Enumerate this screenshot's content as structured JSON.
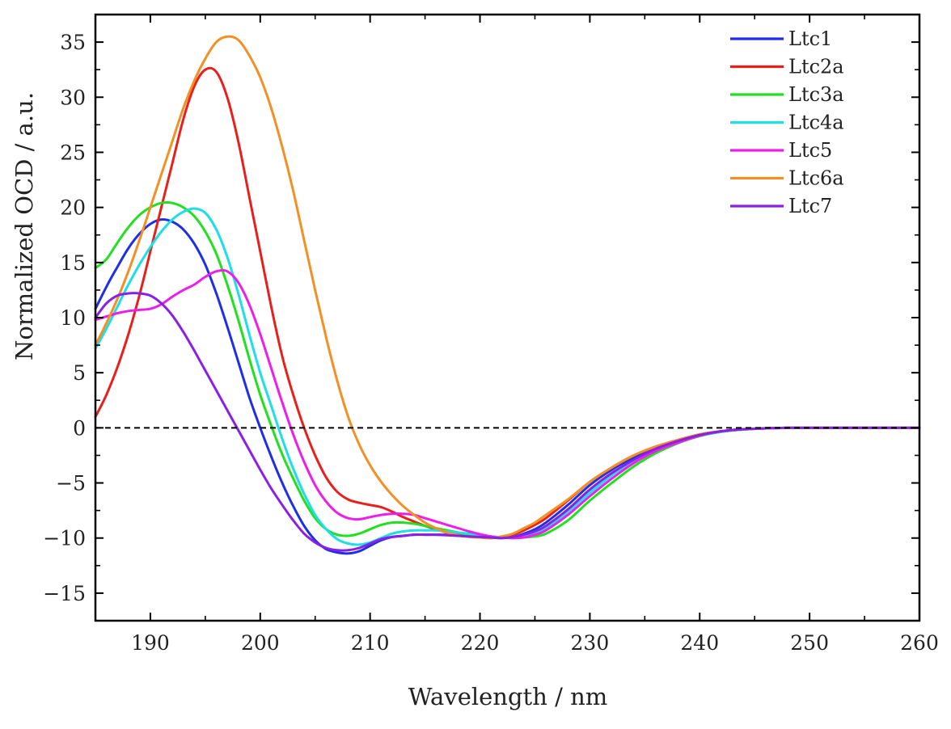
{
  "chart_data": {
    "type": "line",
    "title": "",
    "xlabel": "Wavelength / nm",
    "ylabel": "Normalized OCD / a.u.",
    "xlim": [
      185,
      260
    ],
    "ylim": [
      -17.5,
      37.5
    ],
    "xticks": [
      190,
      200,
      210,
      220,
      230,
      240,
      250,
      260
    ],
    "yticks": [
      -15,
      -10,
      -5,
      0,
      5,
      10,
      15,
      20,
      25,
      30,
      35
    ],
    "ytick_labels": [
      "−15",
      "−10",
      "−5",
      "0",
      "5",
      "10",
      "15",
      "20",
      "25",
      "30",
      "35"
    ],
    "zero_line": "dashed",
    "legend_position": "top-right",
    "series": [
      {
        "name": "Ltc1",
        "color": "#1f2ee8",
        "x": [
          185,
          186,
          187,
          188,
          189,
          190,
          191,
          192,
          193,
          194,
          195,
          196,
          197,
          198,
          199,
          200,
          201,
          202,
          203,
          204,
          205,
          206,
          207,
          208,
          209,
          210,
          211,
          212,
          213,
          214,
          215,
          216,
          217,
          218,
          219,
          220,
          221,
          222,
          223,
          224,
          225,
          226,
          228,
          230,
          232,
          234,
          236,
          238,
          240,
          242,
          244,
          246,
          248,
          250,
          252,
          254,
          256,
          258,
          260
        ],
        "y": [
          10.8,
          12.8,
          14.6,
          16.3,
          17.6,
          18.5,
          18.9,
          18.7,
          18,
          16.7,
          14.8,
          12.2,
          9.2,
          6,
          2.8,
          0,
          -2.6,
          -5,
          -7.1,
          -8.9,
          -10.2,
          -11,
          -11.3,
          -11.4,
          -11.2,
          -10.7,
          -10.2,
          -9.9,
          -9.8,
          -9.7,
          -9.7,
          -9.7,
          -9.7,
          -9.7,
          -9.8,
          -9.9,
          -9.95,
          -10,
          -9.9,
          -9.6,
          -9.2,
          -8.6,
          -7,
          -5.2,
          -3.8,
          -2.7,
          -1.8,
          -1.2,
          -0.7,
          -0.35,
          -0.15,
          -0.05,
          0,
          0,
          0,
          0,
          0,
          0,
          0
        ]
      },
      {
        "name": "Ltc2a",
        "color": "#e8201c",
        "x": [
          185,
          186,
          187,
          188,
          189,
          190,
          191,
          192,
          193,
          194,
          195,
          196,
          197,
          198,
          199,
          200,
          201,
          202,
          203,
          204,
          205,
          206,
          207,
          208,
          209,
          210,
          211,
          212,
          213,
          214,
          215,
          216,
          217,
          218,
          219,
          220,
          221,
          222,
          223,
          224,
          225,
          226,
          228,
          230,
          232,
          234,
          236,
          238,
          240,
          242,
          244,
          246,
          248,
          250,
          252,
          254,
          256,
          258,
          260
        ],
        "y": [
          1,
          3,
          5.5,
          8.5,
          12,
          16,
          20,
          24,
          28,
          31,
          32.5,
          32.3,
          30,
          26,
          21,
          16,
          11,
          6.5,
          3,
          0,
          -2.5,
          -4.5,
          -5.8,
          -6.5,
          -6.8,
          -7,
          -7.2,
          -7.6,
          -8.1,
          -8.5,
          -8.9,
          -9.2,
          -9.5,
          -9.7,
          -9.85,
          -9.95,
          -10,
          -9.9,
          -9.7,
          -9.3,
          -8.8,
          -8.2,
          -6.6,
          -4.9,
          -3.6,
          -2.5,
          -1.7,
          -1.1,
          -0.6,
          -0.3,
          -0.12,
          -0.04,
          0,
          0,
          0,
          0,
          0,
          0,
          0
        ]
      },
      {
        "name": "Ltc3a",
        "color": "#21e11f",
        "x": [
          185,
          186,
          187,
          188,
          189,
          190,
          191,
          192,
          193,
          194,
          195,
          196,
          197,
          198,
          199,
          200,
          201,
          202,
          203,
          204,
          205,
          206,
          207,
          208,
          209,
          210,
          211,
          212,
          213,
          214,
          215,
          216,
          217,
          218,
          219,
          220,
          221,
          222,
          223,
          224,
          225,
          226,
          228,
          230,
          232,
          234,
          236,
          238,
          240,
          242,
          244,
          246,
          248,
          250,
          252,
          254,
          256,
          258,
          260
        ],
        "y": [
          14.5,
          15.3,
          16.8,
          18.2,
          19.3,
          20,
          20.4,
          20.4,
          20,
          19.2,
          17.8,
          15.8,
          13,
          9.8,
          6.3,
          3,
          0.2,
          -2.4,
          -4.6,
          -6.6,
          -8.2,
          -9.2,
          -9.7,
          -9.8,
          -9.6,
          -9.2,
          -8.8,
          -8.6,
          -8.6,
          -8.7,
          -8.9,
          -9.1,
          -9.3,
          -9.5,
          -9.7,
          -9.85,
          -9.9,
          -9.95,
          -10,
          -9.95,
          -9.85,
          -9.6,
          -8.4,
          -6.6,
          -5,
          -3.5,
          -2.3,
          -1.4,
          -0.75,
          -0.35,
          -0.15,
          -0.05,
          0,
          0,
          0,
          0,
          0,
          0,
          0
        ]
      },
      {
        "name": "Ltc4a",
        "color": "#1cdfe8",
        "x": [
          185,
          186,
          187,
          188,
          189,
          190,
          191,
          192,
          193,
          194,
          195,
          196,
          197,
          198,
          199,
          200,
          201,
          202,
          203,
          204,
          205,
          206,
          207,
          208,
          209,
          210,
          211,
          212,
          213,
          214,
          215,
          216,
          217,
          218,
          219,
          220,
          221,
          222,
          223,
          224,
          225,
          226,
          228,
          230,
          232,
          234,
          236,
          238,
          240,
          242,
          244,
          246,
          248,
          250,
          252,
          254,
          256,
          258,
          260
        ],
        "y": [
          7.2,
          9,
          11,
          13,
          14.8,
          16.4,
          17.8,
          18.9,
          19.6,
          19.9,
          19.5,
          18,
          15.5,
          12.2,
          8.5,
          5,
          2,
          -1,
          -3.7,
          -6,
          -7.9,
          -9.2,
          -10.1,
          -10.5,
          -10.6,
          -10.4,
          -10,
          -9.6,
          -9.4,
          -9.3,
          -9.3,
          -9.3,
          -9.4,
          -9.5,
          -9.6,
          -9.75,
          -9.85,
          -9.95,
          -10,
          -9.85,
          -9.55,
          -9.1,
          -7.6,
          -5.9,
          -4.3,
          -3,
          -2,
          -1.3,
          -0.7,
          -0.35,
          -0.15,
          -0.05,
          0,
          0,
          0,
          0,
          0,
          0,
          0
        ]
      },
      {
        "name": "Ltc5",
        "color": "#ee1eea",
        "x": [
          185,
          186,
          187,
          188,
          189,
          190,
          191,
          192,
          193,
          194,
          195,
          196,
          197,
          198,
          199,
          200,
          201,
          202,
          203,
          204,
          205,
          206,
          207,
          208,
          209,
          210,
          211,
          212,
          213,
          214,
          215,
          216,
          217,
          218,
          219,
          220,
          221,
          222,
          223,
          224,
          225,
          226,
          228,
          230,
          232,
          234,
          236,
          238,
          240,
          242,
          244,
          246,
          248,
          250,
          252,
          254,
          256,
          258,
          260
        ],
        "y": [
          9.8,
          10.1,
          10.4,
          10.6,
          10.7,
          10.8,
          11.2,
          11.9,
          12.5,
          13,
          13.7,
          14.2,
          14.2,
          13.2,
          11.2,
          8.5,
          5.4,
          2.3,
          -0.6,
          -3.1,
          -5.2,
          -6.7,
          -7.7,
          -8.2,
          -8.3,
          -8.1,
          -7.9,
          -7.8,
          -7.8,
          -7.9,
          -8.2,
          -8.5,
          -8.8,
          -9.1,
          -9.4,
          -9.65,
          -9.85,
          -9.95,
          -10,
          -9.95,
          -9.7,
          -9.3,
          -7.9,
          -6.2,
          -4.6,
          -3.2,
          -2.1,
          -1.35,
          -0.7,
          -0.3,
          -0.12,
          -0.04,
          0,
          0,
          0,
          0,
          0,
          0,
          0
        ]
      },
      {
        "name": "Ltc6a",
        "color": "#f39025",
        "x": [
          185,
          186,
          187,
          188,
          189,
          190,
          191,
          192,
          193,
          194,
          195,
          196,
          197,
          198,
          199,
          200,
          201,
          202,
          203,
          204,
          205,
          206,
          207,
          208,
          209,
          210,
          211,
          212,
          213,
          214,
          215,
          216,
          217,
          218,
          219,
          220,
          221,
          222,
          223,
          224,
          225,
          226,
          228,
          230,
          232,
          234,
          236,
          238,
          240,
          242,
          244,
          246,
          248,
          250,
          252,
          254,
          256,
          258,
          260
        ],
        "y": [
          7.5,
          9.5,
          11.7,
          14.2,
          17,
          20,
          23,
          26,
          29,
          31.5,
          33.5,
          35,
          35.5,
          35.2,
          33.8,
          31.8,
          29,
          25.5,
          21.5,
          17,
          12.5,
          8.2,
          4.3,
          1,
          -1.5,
          -3.4,
          -4.9,
          -6.1,
          -7.1,
          -7.9,
          -8.6,
          -9.1,
          -9.5,
          -9.75,
          -9.9,
          -9.95,
          -10,
          -9.85,
          -9.6,
          -9.1,
          -8.6,
          -7.9,
          -6.5,
          -4.9,
          -3.6,
          -2.5,
          -1.7,
          -1.1,
          -0.6,
          -0.3,
          -0.12,
          -0.04,
          0,
          0,
          0,
          0,
          0,
          0,
          0
        ]
      },
      {
        "name": "Ltc7",
        "color": "#8a1fe6",
        "x": [
          185,
          186,
          187,
          188,
          189,
          190,
          191,
          192,
          193,
          194,
          195,
          196,
          197,
          198,
          199,
          200,
          201,
          202,
          203,
          204,
          205,
          206,
          207,
          208,
          209,
          210,
          211,
          212,
          213,
          214,
          215,
          216,
          217,
          218,
          219,
          220,
          221,
          222,
          223,
          224,
          225,
          226,
          228,
          230,
          232,
          234,
          236,
          238,
          240,
          242,
          244,
          246,
          248,
          250,
          252,
          254,
          256,
          258,
          260
        ],
        "y": [
          10,
          11.3,
          12,
          12.2,
          12.2,
          12,
          11.3,
          10.2,
          8.7,
          7,
          5.2,
          3.4,
          1.6,
          -0.2,
          -2,
          -3.8,
          -5.5,
          -7,
          -8.4,
          -9.6,
          -10.4,
          -10.9,
          -11.1,
          -11.1,
          -10.9,
          -10.5,
          -10.1,
          -9.9,
          -9.8,
          -9.7,
          -9.7,
          -9.7,
          -9.75,
          -9.8,
          -9.85,
          -9.9,
          -9.95,
          -10,
          -9.9,
          -9.7,
          -9.4,
          -8.9,
          -7.4,
          -5.6,
          -4.1,
          -2.9,
          -1.9,
          -1.2,
          -0.65,
          -0.3,
          -0.12,
          -0.04,
          0,
          0,
          0,
          0,
          0,
          0,
          0
        ]
      }
    ]
  }
}
